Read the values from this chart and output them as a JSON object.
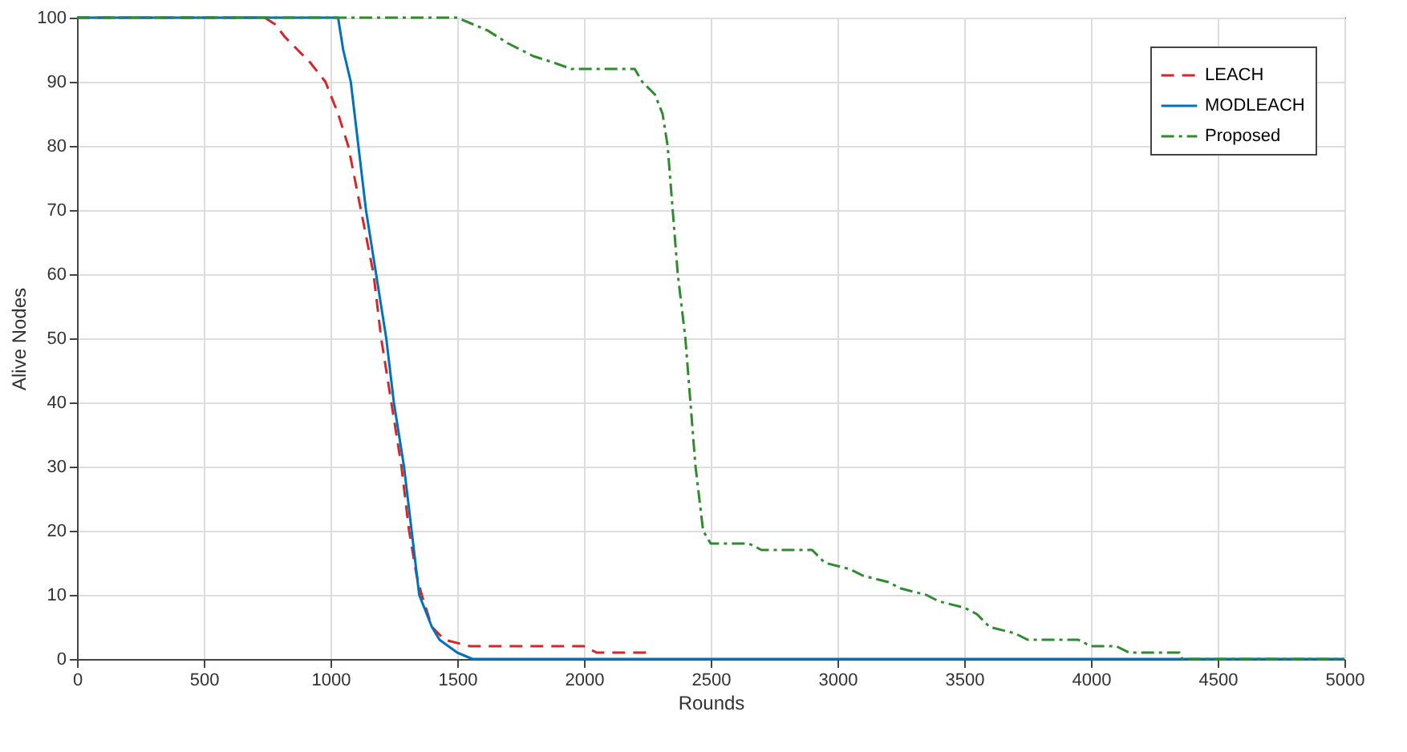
{
  "chart_data": {
    "type": "line",
    "xlabel": "Rounds",
    "ylabel": "Alive Nodes",
    "xlim": [
      0,
      5000
    ],
    "xticks": [
      0,
      500,
      1000,
      1500,
      2000,
      2500,
      3000,
      3500,
      4000,
      4500,
      5000
    ],
    "ylim": [
      0,
      100
    ],
    "yticks": [
      0,
      10,
      20,
      30,
      40,
      50,
      60,
      70,
      80,
      90,
      100
    ],
    "grid": true,
    "legend": "top right",
    "marker": "none",
    "series": [
      {
        "name": "LEACH",
        "color": "#d62728",
        "line_style": "dashed",
        "x": [
          0,
          740,
          780,
          820,
          870,
          920,
          980,
          1030,
          1070,
          1120,
          1170,
          1200,
          1240,
          1280,
          1310,
          1340,
          1360,
          1400,
          1450,
          1550,
          2000,
          2050,
          2250
        ],
        "values": [
          100,
          100,
          99,
          97,
          95,
          93,
          90,
          85,
          80,
          70,
          60,
          50,
          40,
          30,
          20,
          13,
          10,
          5,
          3,
          2,
          2,
          1,
          1
        ]
      },
      {
        "name": "MODLEACH",
        "color": "#0072bd",
        "line_style": "solid",
        "x": [
          0,
          1030,
          1050,
          1080,
          1110,
          1140,
          1180,
          1220,
          1250,
          1290,
          1320,
          1350,
          1380,
          1400,
          1430,
          1500,
          1560,
          5000
        ],
        "values": [
          100,
          100,
          95,
          90,
          80,
          70,
          60,
          50,
          40,
          30,
          20,
          10,
          7,
          5,
          3,
          1,
          0,
          0
        ]
      },
      {
        "name": "Proposed",
        "color": "#2e8b2e",
        "line_style": "dashdot",
        "x": [
          0,
          1500,
          1560,
          1620,
          1700,
          1800,
          1880,
          1950,
          2200,
          2230,
          2280,
          2310,
          2330,
          2350,
          2370,
          2400,
          2420,
          2440,
          2470,
          2500,
          2650,
          2700,
          2900,
          2950,
          3050,
          3100,
          3200,
          3250,
          3350,
          3400,
          3500,
          3550,
          3600,
          3700,
          3750,
          3950,
          4000,
          4100,
          4150,
          4350,
          4360,
          5000
        ],
        "values": [
          100,
          100,
          99,
          98,
          96,
          94,
          93,
          92,
          92,
          90,
          88,
          85,
          80,
          70,
          60,
          50,
          40,
          30,
          20,
          18,
          18,
          17,
          17,
          15,
          14,
          13,
          12,
          11,
          10,
          9,
          8,
          7,
          5,
          4,
          3,
          3,
          2,
          2,
          1,
          1,
          0,
          0
        ]
      }
    ]
  }
}
